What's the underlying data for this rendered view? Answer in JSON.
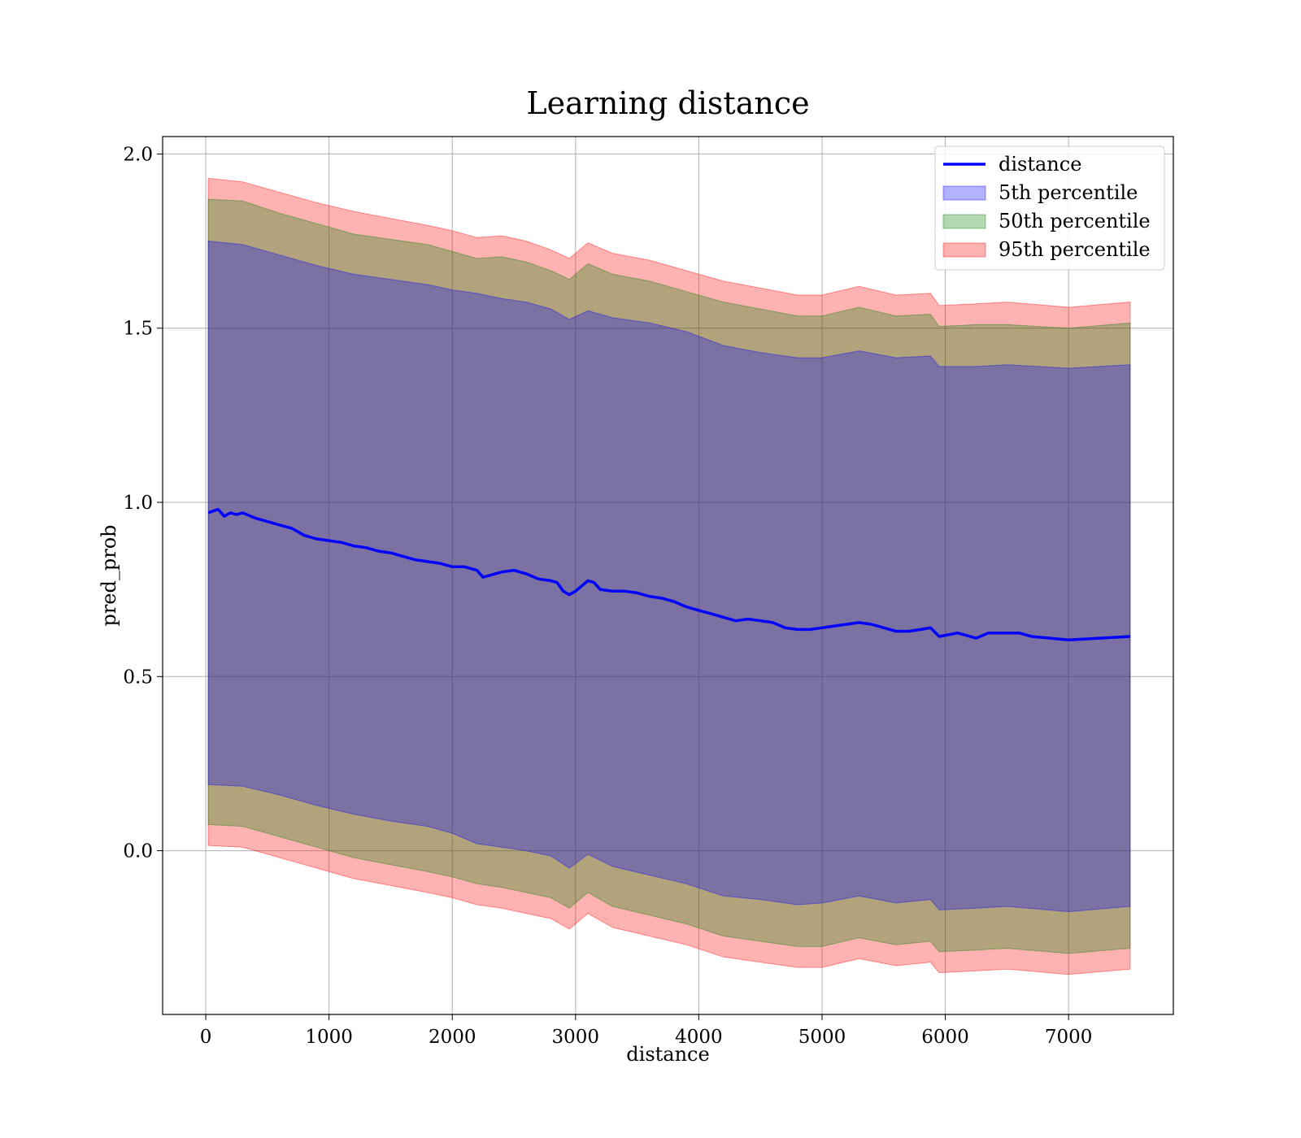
{
  "chart_data": {
    "type": "line",
    "title": "Learning distance",
    "xlabel": "distance",
    "ylabel": "pred_prob",
    "xlim": [
      -350,
      7850
    ],
    "ylim": [
      -0.47,
      2.05
    ],
    "xticks": [
      0,
      1000,
      2000,
      3000,
      4000,
      5000,
      6000,
      7000
    ],
    "xtick_labels": [
      "0",
      "1000",
      "2000",
      "3000",
      "4000",
      "5000",
      "6000",
      "7000"
    ],
    "yticks": [
      0.0,
      0.5,
      1.0,
      1.5,
      2.0
    ],
    "ytick_labels": [
      "0.0",
      "0.5",
      "1.0",
      "1.5",
      "2.0"
    ],
    "grid": true,
    "legend_position": "top-right",
    "legend": [
      "distance",
      "5th percentile",
      "50th percentile",
      "95th percentile"
    ],
    "colors": {
      "line": "#0000ff",
      "band_5th": "#0000ff",
      "band_50th": "#008000",
      "band_95th": "#ff0000",
      "grid": "#b0b0b0"
    },
    "series": [
      {
        "name": "distance",
        "kind": "line",
        "x": [
          20,
          60,
          100,
          150,
          200,
          250,
          300,
          400,
          500,
          600,
          700,
          800,
          900,
          1000,
          1100,
          1200,
          1300,
          1400,
          1500,
          1600,
          1700,
          1800,
          1900,
          2000,
          2100,
          2200,
          2250,
          2300,
          2400,
          2500,
          2600,
          2700,
          2800,
          2850,
          2900,
          2950,
          3000,
          3050,
          3100,
          3150,
          3200,
          3300,
          3400,
          3500,
          3600,
          3700,
          3800,
          3900,
          4000,
          4100,
          4200,
          4300,
          4400,
          4500,
          4600,
          4700,
          4800,
          4900,
          5000,
          5100,
          5200,
          5300,
          5400,
          5500,
          5600,
          5700,
          5800,
          5880,
          5950,
          6100,
          6250,
          6350,
          6450,
          6600,
          6700,
          6850,
          7000,
          7250,
          7500
        ],
        "y": [
          0.97,
          0.975,
          0.98,
          0.96,
          0.97,
          0.965,
          0.97,
          0.955,
          0.945,
          0.935,
          0.925,
          0.905,
          0.895,
          0.89,
          0.885,
          0.875,
          0.87,
          0.86,
          0.855,
          0.845,
          0.835,
          0.83,
          0.825,
          0.815,
          0.815,
          0.805,
          0.785,
          0.79,
          0.8,
          0.805,
          0.795,
          0.78,
          0.775,
          0.77,
          0.745,
          0.735,
          0.745,
          0.76,
          0.775,
          0.77,
          0.75,
          0.745,
          0.745,
          0.74,
          0.73,
          0.725,
          0.715,
          0.7,
          0.69,
          0.68,
          0.67,
          0.66,
          0.665,
          0.66,
          0.655,
          0.64,
          0.635,
          0.635,
          0.64,
          0.645,
          0.65,
          0.655,
          0.65,
          0.64,
          0.63,
          0.63,
          0.635,
          0.64,
          0.615,
          0.625,
          0.61,
          0.625,
          0.625,
          0.625,
          0.615,
          0.61,
          0.605,
          0.61,
          0.615
        ]
      },
      {
        "name": "5th percentile",
        "kind": "band",
        "x": [
          20,
          300,
          600,
          900,
          1200,
          1500,
          1800,
          2000,
          2200,
          2400,
          2600,
          2800,
          2950,
          3100,
          3300,
          3600,
          3900,
          4200,
          4500,
          4800,
          5000,
          5300,
          5600,
          5880,
          5950,
          6250,
          6500,
          7000,
          7500
        ],
        "upper": [
          1.75,
          1.74,
          1.71,
          1.68,
          1.655,
          1.64,
          1.625,
          1.61,
          1.6,
          1.585,
          1.575,
          1.555,
          1.525,
          1.55,
          1.53,
          1.515,
          1.49,
          1.45,
          1.43,
          1.415,
          1.415,
          1.435,
          1.415,
          1.42,
          1.39,
          1.39,
          1.395,
          1.385,
          1.395
        ],
        "lower": [
          0.19,
          0.185,
          0.16,
          0.13,
          0.105,
          0.085,
          0.07,
          0.05,
          0.02,
          0.01,
          0.0,
          -0.015,
          -0.05,
          -0.01,
          -0.045,
          -0.07,
          -0.095,
          -0.13,
          -0.14,
          -0.155,
          -0.15,
          -0.13,
          -0.15,
          -0.14,
          -0.17,
          -0.165,
          -0.16,
          -0.175,
          -0.16
        ]
      },
      {
        "name": "50th percentile",
        "kind": "band",
        "x": [
          20,
          300,
          600,
          900,
          1200,
          1500,
          1800,
          2000,
          2200,
          2400,
          2600,
          2800,
          2950,
          3100,
          3300,
          3600,
          3900,
          4200,
          4500,
          4800,
          5000,
          5300,
          5600,
          5880,
          5950,
          6250,
          6500,
          7000,
          7500
        ],
        "upper": [
          1.87,
          1.865,
          1.83,
          1.8,
          1.77,
          1.755,
          1.74,
          1.72,
          1.7,
          1.705,
          1.69,
          1.665,
          1.64,
          1.685,
          1.655,
          1.635,
          1.605,
          1.575,
          1.555,
          1.535,
          1.535,
          1.56,
          1.535,
          1.54,
          1.505,
          1.51,
          1.51,
          1.5,
          1.515
        ],
        "lower": [
          0.075,
          0.07,
          0.04,
          0.01,
          -0.02,
          -0.04,
          -0.06,
          -0.075,
          -0.095,
          -0.105,
          -0.12,
          -0.135,
          -0.165,
          -0.12,
          -0.16,
          -0.185,
          -0.21,
          -0.245,
          -0.26,
          -0.275,
          -0.275,
          -0.25,
          -0.27,
          -0.26,
          -0.29,
          -0.285,
          -0.28,
          -0.295,
          -0.28
        ]
      },
      {
        "name": "95th percentile",
        "kind": "band",
        "x": [
          20,
          300,
          600,
          900,
          1200,
          1500,
          1800,
          2000,
          2200,
          2400,
          2600,
          2800,
          2950,
          3100,
          3300,
          3600,
          3900,
          4200,
          4500,
          4800,
          5000,
          5300,
          5600,
          5880,
          5950,
          6250,
          6500,
          7000,
          7500
        ],
        "upper": [
          1.93,
          1.92,
          1.89,
          1.86,
          1.835,
          1.815,
          1.795,
          1.78,
          1.76,
          1.765,
          1.75,
          1.725,
          1.7,
          1.745,
          1.715,
          1.695,
          1.665,
          1.635,
          1.615,
          1.595,
          1.595,
          1.62,
          1.595,
          1.6,
          1.565,
          1.57,
          1.575,
          1.56,
          1.575
        ],
        "lower": [
          0.015,
          0.01,
          -0.02,
          -0.05,
          -0.08,
          -0.1,
          -0.12,
          -0.135,
          -0.155,
          -0.165,
          -0.18,
          -0.195,
          -0.225,
          -0.18,
          -0.22,
          -0.245,
          -0.27,
          -0.305,
          -0.32,
          -0.335,
          -0.335,
          -0.31,
          -0.33,
          -0.32,
          -0.35,
          -0.345,
          -0.34,
          -0.355,
          -0.34
        ]
      }
    ]
  }
}
